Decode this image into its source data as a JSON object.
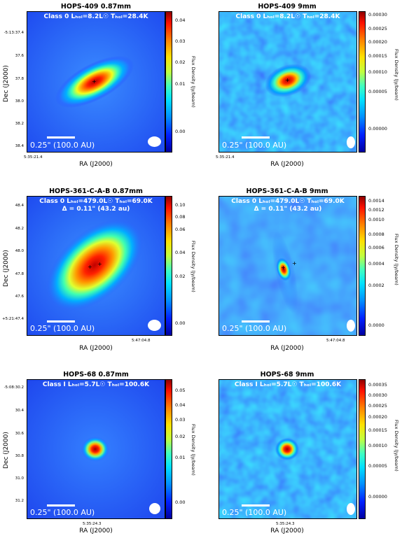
{
  "rows": [
    {
      "left": {
        "title": "HOPS-409 0.87mm",
        "info1": "Class 0  Lₕₒₗ=8.2L☉  Tₕₒₗ=28.4K",
        "info2": "",
        "scale": "0.25\" (100.0 AU)",
        "ylabel": "Dec (J2000)",
        "xlabel": "RA (J2000)",
        "yticks": [
          "-5:13:37.4",
          "37.6",
          "37.8",
          "38.0",
          "38.2",
          "38.4"
        ],
        "xtick": "5:35:21.4",
        "cbar_label": "Flux Density (Jy/beam)",
        "cticks": [
          "0.04",
          "0.03",
          "0.02",
          "0.01",
          "0.00"
        ]
      },
      "right": {
        "title": "HOPS-409 9mm",
        "info1": "Class 0  Lₕₒₗ=8.2L☉  Tₕₒₗ=28.4K",
        "info2": "",
        "scale": "0.25\" (100.0 AU)",
        "xlabel": "RA (J2000)",
        "xtick": "5:35:21.4",
        "cbar_label": "Flux Density (Jy/beam)",
        "cticks": [
          "0.00030",
          "0.00025",
          "0.00020",
          "0.00015",
          "0.00010",
          "0.00005",
          "0.00000"
        ]
      }
    },
    {
      "left": {
        "title": "HOPS-361-C-A-B 0.87mm",
        "info1": "Class 0  Lₕₒₗ=479.0L☉  Tₕₒₗ=69.0K",
        "info2": "Δ = 0.11\" (43.2 au)",
        "scale": "0.25\" (100.0 AU)",
        "ylabel": "Dec (J2000)",
        "xlabel": "RA (J2000)",
        "yticks": [
          "48.4",
          "48.2",
          "48.0",
          "47.8",
          "47.6",
          "+5:21:47.4"
        ],
        "xtick": "5:47:04.8",
        "cbar_label": "Flux Density (Jy/beam)",
        "cticks": [
          "0.10",
          "0.08",
          "0.06",
          "0.04",
          "0.02",
          "0.00"
        ]
      },
      "right": {
        "title": "HOPS-361-C-A-B 9mm",
        "info1": "Class 0  Lₕₒₗ=479.0L☉  Tₕₒₗ=69.0K",
        "info2": "Δ = 0.11\" (43.2 au)",
        "scale": "0.25\" (100.0 AU)",
        "xlabel": "RA (J2000)",
        "xtick": "5:47:04.8",
        "cbar_label": "Flux Density (Jy/beam)",
        "cticks": [
          "0.0014",
          "0.0012",
          "0.0010",
          "0.0008",
          "0.0006",
          "0.0004",
          "0.0002",
          "0.0000"
        ]
      }
    },
    {
      "left": {
        "title": "HOPS-68 0.87mm",
        "info1": "Class I  Lₕₒₗ=5.7L☉  Tₕₒₗ=100.6K",
        "info2": "",
        "scale": "0.25\" (100.0 AU)",
        "ylabel": "Dec (J2000)",
        "xlabel": "RA (J2000)",
        "yticks": [
          "-5:08:30.2",
          "30.4",
          "30.6",
          "30.8",
          "31.0",
          "31.2"
        ],
        "xtick": "5:35:24.3",
        "cbar_label": "Flux Density (Jy/beam)",
        "cticks": [
          "0.05",
          "0.04",
          "0.03",
          "0.02",
          "0.01",
          "0.00"
        ]
      },
      "right": {
        "title": "HOPS-68 9mm",
        "info1": "Class I  Lₕₒₗ=5.7L☉  Tₕₒₗ=100.6K",
        "info2": "",
        "scale": "0.25\" (100.0 AU)",
        "xlabel": "RA (J2000)",
        "xtick": "5:35:24.3",
        "cbar_label": "Flux Density (Jy/beam)",
        "cticks": [
          "0.00035",
          "0.00030",
          "0.00025",
          "0.00020",
          "0.00015",
          "0.00010",
          "0.00005",
          "0.00000"
        ]
      }
    }
  ],
  "colors": {
    "background_blue": "#2a5cff",
    "peak_red": "#c00000",
    "text_white": "#ffffff"
  }
}
